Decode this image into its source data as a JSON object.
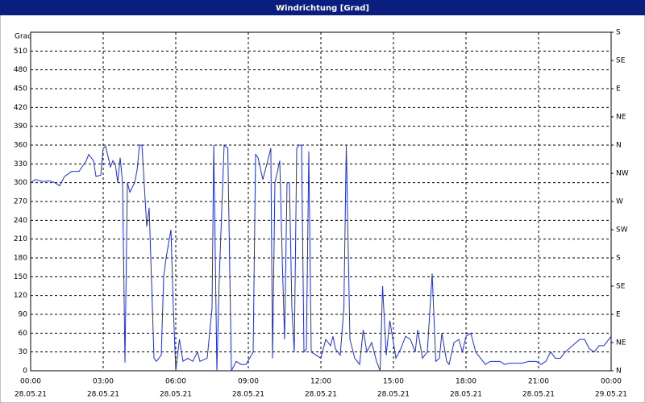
{
  "chart_data": {
    "type": "line",
    "title": "Windrichtung [Grad]",
    "y_label": "Grad",
    "x": [
      0,
      0.2,
      0.5,
      0.8,
      1.0,
      1.2,
      1.4,
      1.7,
      2.0,
      2.3,
      2.4,
      2.6,
      2.7,
      2.9,
      3.0,
      3.1,
      3.3,
      3.4,
      3.5,
      3.6,
      3.7,
      3.8,
      3.9,
      4.0,
      4.1,
      4.3,
      4.4,
      4.5,
      4.6,
      4.8,
      4.9,
      5.1,
      5.2,
      5.4,
      5.5,
      5.6,
      5.8,
      5.9,
      6.0,
      6.15,
      6.3,
      6.5,
      6.7,
      6.9,
      7.0,
      7.3,
      7.5,
      7.57,
      7.7,
      7.8,
      8.0,
      8.15,
      8.3,
      8.5,
      8.7,
      8.9,
      9.2,
      9.3,
      9.4,
      9.6,
      9.8,
      9.93,
      10.0,
      10.1,
      10.3,
      10.4,
      10.5,
      10.6,
      10.7,
      10.8,
      10.9,
      11.0,
      11.1,
      11.2,
      11.3,
      11.4,
      11.5,
      11.6,
      11.8,
      12.0,
      12.2,
      12.4,
      12.5,
      12.6,
      12.8,
      12.95,
      13.05,
      13.2,
      13.4,
      13.6,
      13.75,
      13.9,
      14.1,
      14.3,
      14.45,
      14.55,
      14.7,
      14.85,
      15.0,
      15.1,
      15.3,
      15.5,
      15.7,
      15.9,
      16.0,
      16.2,
      16.4,
      16.6,
      16.75,
      16.9,
      17.0,
      17.2,
      17.3,
      17.5,
      17.7,
      17.85,
      18.0,
      18.2,
      18.4,
      18.6,
      18.8,
      19.0,
      19.2,
      19.4,
      19.6,
      19.8,
      20.0,
      20.3,
      20.6,
      20.9,
      21.1,
      21.3,
      21.5,
      21.7,
      21.9,
      22.1,
      22.4,
      22.7,
      22.9,
      23.1,
      23.3,
      23.5,
      23.7,
      24.0
    ],
    "series": [
      {
        "name": "Windrichtung",
        "color": "#1c2ee0",
        "values": [
          300,
          305,
          302,
          303,
          300,
          295,
          310,
          318,
          318,
          335,
          345,
          335,
          310,
          312,
          355,
          358,
          325,
          335,
          330,
          300,
          340,
          300,
          13,
          300,
          285,
          300,
          320,
          360,
          360,
          230,
          260,
          20,
          15,
          25,
          150,
          180,
          225,
          100,
          0,
          50,
          15,
          20,
          15,
          30,
          15,
          20,
          100,
          360,
          0,
          150,
          360,
          355,
          0,
          15,
          10,
          10,
          30,
          345,
          340,
          305,
          335,
          355,
          20,
          300,
          335,
          180,
          50,
          300,
          300,
          100,
          30,
          355,
          360,
          360,
          30,
          35,
          350,
          30,
          25,
          20,
          50,
          40,
          55,
          35,
          25,
          100,
          360,
          50,
          20,
          10,
          65,
          30,
          45,
          15,
          0,
          135,
          25,
          80,
          45,
          20,
          35,
          55,
          50,
          30,
          65,
          20,
          30,
          155,
          15,
          20,
          60,
          15,
          10,
          45,
          50,
          30,
          55,
          60,
          30,
          20,
          10,
          15,
          15,
          15,
          10,
          12,
          12,
          12,
          15,
          15,
          10,
          15,
          30,
          20,
          20,
          30,
          40,
          50,
          50,
          35,
          30,
          40,
          40,
          55
        ]
      }
    ],
    "xlim": [
      0,
      24
    ],
    "xticks": [
      {
        "value": 0,
        "label": "00:00"
      },
      {
        "value": 3,
        "label": "03:00"
      },
      {
        "value": 6,
        "label": "06:00"
      },
      {
        "value": 9,
        "label": "09:00"
      },
      {
        "value": 12,
        "label": "12:00"
      },
      {
        "value": 15,
        "label": "15:00"
      },
      {
        "value": 18,
        "label": "18:00"
      },
      {
        "value": 21,
        "label": "21:00"
      },
      {
        "value": 24,
        "label": "00:00"
      }
    ],
    "xtick_dates": [
      "28.05.21",
      "28.05.21",
      "28.05.21",
      "28.05.21",
      "28.05.21",
      "28.05.21",
      "28.05.21",
      "28.05.21",
      "29.05.21"
    ],
    "ylim": [
      0,
      540
    ],
    "yticks": [
      0,
      30,
      60,
      90,
      120,
      150,
      180,
      210,
      240,
      270,
      300,
      330,
      360,
      390,
      420,
      450,
      480,
      510
    ],
    "y2lim": [
      0,
      540
    ],
    "y2ticks": [
      {
        "value": 0,
        "label": "N"
      },
      {
        "value": 45,
        "label": "NE"
      },
      {
        "value": 90,
        "label": "E"
      },
      {
        "value": 135,
        "label": "SE"
      },
      {
        "value": 180,
        "label": "S"
      },
      {
        "value": 225,
        "label": "SW"
      },
      {
        "value": 270,
        "label": "W"
      },
      {
        "value": 315,
        "label": "NW"
      },
      {
        "value": 360,
        "label": "N"
      },
      {
        "value": 405,
        "label": "NE"
      },
      {
        "value": 450,
        "label": "E"
      },
      {
        "value": 495,
        "label": "SE"
      },
      {
        "value": 540,
        "label": "S"
      }
    ],
    "grid": true
  }
}
